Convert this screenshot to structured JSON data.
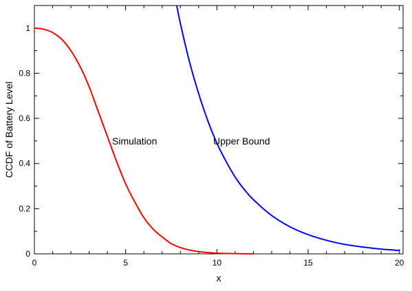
{
  "chart_data": {
    "type": "line",
    "title": "",
    "xlabel": "x",
    "ylabel": "CCDF of Battery Level",
    "xlim": [
      0,
      20.2
    ],
    "ylim": [
      0,
      1.1
    ],
    "xticks": [
      0,
      5,
      10,
      15,
      20
    ],
    "yticks": [
      0,
      0.2,
      0.4,
      0.6,
      0.8,
      1
    ],
    "xtick_labels": [
      "0",
      "5",
      "10",
      "15",
      "20"
    ],
    "ytick_labels": [
      "0",
      "0.2",
      "0.4",
      "0.6",
      "0.8",
      "1"
    ],
    "grid": false,
    "legend": "none",
    "series": [
      {
        "name": "Simulation",
        "color": "#ff0000",
        "x": [
          0,
          0.5,
          1,
          1.5,
          2,
          2.5,
          3,
          3.5,
          4,
          4.5,
          5,
          5.5,
          6,
          6.5,
          7,
          7.5,
          8,
          8.5,
          9,
          9.5,
          10,
          11,
          12
        ],
        "y": [
          1.0,
          0.995,
          0.98,
          0.95,
          0.9,
          0.83,
          0.74,
          0.63,
          0.52,
          0.41,
          0.31,
          0.23,
          0.16,
          0.11,
          0.075,
          0.045,
          0.028,
          0.017,
          0.01,
          0.006,
          0.003,
          0.001,
          0.0
        ]
      },
      {
        "name": "Upper Bound",
        "color": "#0000ff",
        "x": [
          7.8,
          8,
          8.5,
          9,
          9.5,
          10,
          10.5,
          11,
          11.5,
          12,
          13,
          14,
          15,
          16,
          17,
          18,
          19,
          20
        ],
        "y": [
          1.1,
          1.02,
          0.85,
          0.71,
          0.59,
          0.49,
          0.41,
          0.34,
          0.285,
          0.24,
          0.17,
          0.12,
          0.085,
          0.06,
          0.042,
          0.03,
          0.021,
          0.015
        ]
      }
    ],
    "annotations": [
      {
        "text": "Simulation",
        "series": "Simulation"
      },
      {
        "text": "Upper Bound",
        "series": "Upper Bound"
      }
    ]
  }
}
